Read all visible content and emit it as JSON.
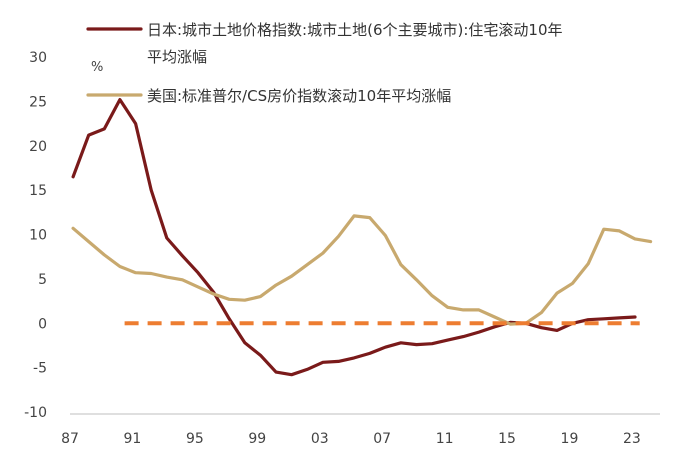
{
  "chart_data": {
    "type": "line",
    "unit_label": "%",
    "ylim": [
      -10,
      30
    ],
    "yticks": [
      -10,
      -5,
      0,
      5,
      10,
      15,
      20,
      25,
      30
    ],
    "xlim": [
      1987,
      2024.8
    ],
    "xticks": [
      {
        "value": 1987,
        "label": "87"
      },
      {
        "value": 1991,
        "label": "91"
      },
      {
        "value": 1995,
        "label": "95"
      },
      {
        "value": 1999,
        "label": "99"
      },
      {
        "value": 2003,
        "label": "03"
      },
      {
        "value": 2007,
        "label": "07"
      },
      {
        "value": 2011,
        "label": "11"
      },
      {
        "value": 2015,
        "label": "15"
      },
      {
        "value": 2019,
        "label": "19"
      },
      {
        "value": 2023,
        "label": "23"
      }
    ],
    "grid": false,
    "legend_position": "top",
    "series": [
      {
        "name": "日本:城市土地价格指数:城市土地(6个主要城市):住宅滚动10年平均涨幅",
        "legend_lines": [
          "日本:城市土地价格指数:城市土地(6个主要城市):住宅滚动10年",
          "平均涨幅"
        ],
        "color": "#7a1a1a",
        "x": [
          1987.2,
          1988.2,
          1989.2,
          1990.2,
          1991.2,
          1992.2,
          1993.2,
          1994.2,
          1995.2,
          1996.2,
          1997.2,
          1998.2,
          1999.2,
          2000.2,
          2001.2,
          2002.2,
          2003.2,
          2004.2,
          2005.2,
          2006.2,
          2007.2,
          2008.2,
          2009.2,
          2010.2,
          2011.2,
          2012.2,
          2013.2,
          2014.2,
          2015.2,
          2016.2,
          2017.2,
          2018.2,
          2019.2,
          2020.2,
          2021.2,
          2022.2,
          2023.2
        ],
        "y": [
          16.5,
          21.2,
          21.9,
          25.2,
          22.5,
          15.0,
          9.6,
          7.6,
          5.7,
          3.5,
          0.5,
          -2.2,
          -3.6,
          -5.5,
          -5.8,
          -5.2,
          -4.4,
          -4.3,
          -3.9,
          -3.4,
          -2.7,
          -2.2,
          -2.4,
          -2.3,
          -1.9,
          -1.5,
          -1.0,
          -0.4,
          0.1,
          0.0,
          -0.5,
          -0.8,
          0.0,
          0.4,
          0.5,
          0.6,
          0.7
        ]
      },
      {
        "name": "美国:标准普尔/CS房价指数滚动10年平均涨幅",
        "legend_lines": [
          "美国:标准普尔/CS房价指数滚动10年平均涨幅"
        ],
        "color": "#c8a96e",
        "x": [
          1987.2,
          1988.2,
          1989.2,
          1990.2,
          1991.2,
          1992.2,
          1993.2,
          1994.2,
          1995.2,
          1996.2,
          1997.2,
          1998.2,
          1999.2,
          2000.2,
          2001.2,
          2002.2,
          2003.2,
          2004.2,
          2005.2,
          2006.2,
          2007.2,
          2008.2,
          2009.2,
          2010.2,
          2011.2,
          2012.2,
          2013.2,
          2014.2,
          2015.2,
          2016.2,
          2017.2,
          2018.2,
          2019.2,
          2020.2,
          2021.2,
          2022.2,
          2023.2,
          2024.2
        ],
        "y": [
          10.7,
          9.2,
          7.7,
          6.4,
          5.7,
          5.6,
          5.2,
          4.9,
          4.1,
          3.3,
          2.7,
          2.6,
          3.0,
          4.3,
          5.3,
          6.6,
          7.9,
          9.8,
          12.1,
          11.9,
          9.9,
          6.6,
          4.9,
          3.1,
          1.8,
          1.5,
          1.5,
          0.7,
          -0.1,
          0.0,
          1.2,
          3.4,
          4.5,
          6.7,
          10.6,
          10.4,
          9.5,
          9.2
        ]
      },
      {
        "name": "",
        "color": "#ed7d31",
        "dashed": true,
        "x": [
          1990.5,
          2023.5
        ],
        "y": [
          0,
          0
        ]
      }
    ]
  }
}
